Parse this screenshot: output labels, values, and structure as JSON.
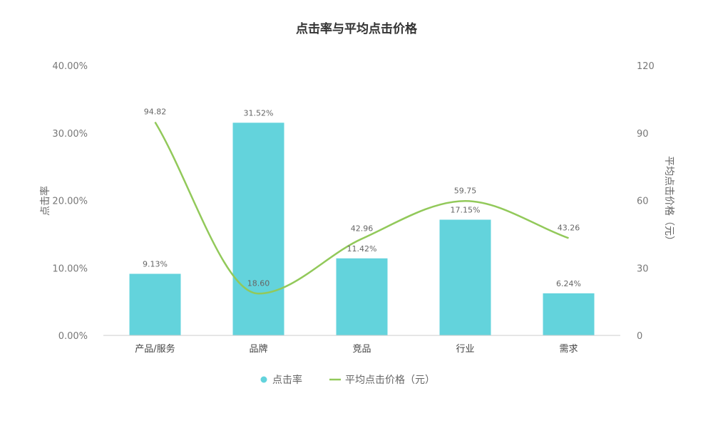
{
  "chart_data": {
    "type": "bar+line",
    "title": "点击率与平均点击价格",
    "categories": [
      "产品/服务",
      "品牌",
      "竞品",
      "行业",
      "需求"
    ],
    "series": [
      {
        "name": "点击率",
        "type": "bar",
        "axis": "left",
        "color": "#63d3dc",
        "values": [
          9.13,
          31.52,
          11.42,
          17.15,
          6.24
        ],
        "labels": [
          "9.13%",
          "31.52%",
          "11.42%",
          "17.15%",
          "6.24%"
        ]
      },
      {
        "name": "平均点击价格（元）",
        "type": "line",
        "axis": "right",
        "smooth": true,
        "color": "#92c95a",
        "values": [
          94.82,
          18.6,
          42.96,
          59.75,
          43.26
        ],
        "labels": [
          "94.82",
          "18.60",
          "42.96",
          "59.75",
          "43.26"
        ]
      }
    ],
    "y_left": {
      "label": "点击率",
      "range": [
        0,
        40
      ],
      "ticks": [
        "0.00%",
        "10.00%",
        "20.00%",
        "30.00%",
        "40.00%"
      ]
    },
    "y_right": {
      "label": "平均点击价格（元）",
      "range": [
        0,
        120
      ],
      "ticks": [
        "0",
        "30",
        "60",
        "90",
        "120"
      ]
    },
    "grid": false,
    "legend": "bottom"
  }
}
